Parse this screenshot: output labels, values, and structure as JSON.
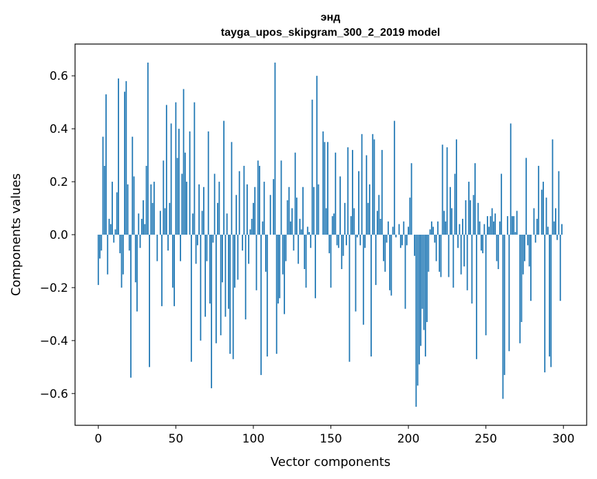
{
  "chart_data": {
    "type": "bar",
    "title": "энд",
    "subtitle": "tayga_upos_skipgram_300_2_2019 model",
    "xlabel": "Vector components",
    "ylabel": "Components values",
    "xlim": [
      -15,
      315
    ],
    "ylim": [
      -0.72,
      0.72
    ],
    "xticks": [
      0,
      50,
      100,
      150,
      200,
      250,
      300
    ],
    "xtick_labels": [
      "0",
      "50",
      "100",
      "150",
      "200",
      "250",
      "300"
    ],
    "yticks": [
      -0.6,
      -0.4,
      -0.2,
      0.0,
      0.2,
      0.4,
      0.6
    ],
    "ytick_labels": [
      "−0.6",
      "−0.4",
      "−0.2",
      "0.0",
      "0.2",
      "0.4",
      "0.6"
    ],
    "grid": false,
    "bar_color": "#1f77b4",
    "x": [
      0,
      1,
      2,
      3,
      4,
      5,
      6,
      7,
      8,
      9,
      10,
      11,
      12,
      13,
      14,
      15,
      16,
      17,
      18,
      19,
      20,
      21,
      22,
      23,
      24,
      25,
      26,
      27,
      28,
      29,
      30,
      31,
      32,
      33,
      34,
      35,
      36,
      37,
      38,
      39,
      40,
      41,
      42,
      43,
      44,
      45,
      46,
      47,
      48,
      49,
      50,
      51,
      52,
      53,
      54,
      55,
      56,
      57,
      58,
      59,
      60,
      61,
      62,
      63,
      64,
      65,
      66,
      67,
      68,
      69,
      70,
      71,
      72,
      73,
      74,
      75,
      76,
      77,
      78,
      79,
      80,
      81,
      82,
      83,
      84,
      85,
      86,
      87,
      88,
      89,
      90,
      91,
      92,
      93,
      94,
      95,
      96,
      97,
      98,
      99,
      100,
      101,
      102,
      103,
      104,
      105,
      106,
      107,
      108,
      109,
      110,
      111,
      112,
      113,
      114,
      115,
      116,
      117,
      118,
      119,
      120,
      121,
      122,
      123,
      124,
      125,
      126,
      127,
      128,
      129,
      130,
      131,
      132,
      133,
      134,
      135,
      136,
      137,
      138,
      139,
      140,
      141,
      142,
      143,
      144,
      145,
      146,
      147,
      148,
      149,
      150,
      151,
      152,
      153,
      154,
      155,
      156,
      157,
      158,
      159,
      160,
      161,
      162,
      163,
      164,
      165,
      166,
      167,
      168,
      169,
      170,
      171,
      172,
      173,
      174,
      175,
      176,
      177,
      178,
      179,
      180,
      181,
      182,
      183,
      184,
      185,
      186,
      187,
      188,
      189,
      190,
      191,
      192,
      193,
      194,
      195,
      196,
      197,
      198,
      199,
      200,
      201,
      202,
      203,
      204,
      205,
      206,
      207,
      208,
      209,
      210,
      211,
      212,
      213,
      214,
      215,
      216,
      217,
      218,
      219,
      220,
      221,
      222,
      223,
      224,
      225,
      226,
      227,
      228,
      229,
      230,
      231,
      232,
      233,
      234,
      235,
      236,
      237,
      238,
      239,
      240,
      241,
      242,
      243,
      244,
      245,
      246,
      247,
      248,
      249,
      250,
      251,
      252,
      253,
      254,
      255,
      256,
      257,
      258,
      259,
      260,
      261,
      262,
      263,
      264,
      265,
      266,
      267,
      268,
      269,
      270,
      271,
      272,
      273,
      274,
      275,
      276,
      277,
      278,
      279,
      280,
      281,
      282,
      283,
      284,
      285,
      286,
      287,
      288,
      289,
      290,
      291,
      292,
      293,
      294,
      295,
      296,
      297,
      298,
      299
    ],
    "values": [
      -0.19,
      -0.09,
      -0.06,
      0.37,
      0.26,
      0.53,
      -0.15,
      0.06,
      0.04,
      0.2,
      -0.03,
      0.02,
      0.16,
      0.59,
      -0.07,
      -0.2,
      -0.15,
      0.54,
      0.58,
      0.19,
      -0.06,
      -0.54,
      0.37,
      0.22,
      -0.18,
      -0.29,
      0.08,
      -0.05,
      0.06,
      0.13,
      0.04,
      0.26,
      0.65,
      -0.5,
      0.19,
      0.12,
      0.2,
      0.0,
      -0.1,
      0.0,
      0.09,
      -0.27,
      0.28,
      0.1,
      0.49,
      -0.06,
      0.12,
      0.42,
      -0.2,
      -0.27,
      0.5,
      0.29,
      0.4,
      -0.1,
      0.23,
      0.55,
      0.31,
      0.2,
      0.0,
      0.39,
      -0.48,
      0.08,
      0.5,
      -0.11,
      -0.04,
      0.19,
      -0.4,
      0.09,
      0.18,
      -0.31,
      -0.1,
      0.39,
      -0.26,
      -0.58,
      -0.03,
      0.23,
      -0.41,
      0.12,
      0.2,
      -0.38,
      -0.18,
      0.43,
      -0.31,
      0.08,
      -0.28,
      -0.45,
      0.35,
      -0.47,
      -0.2,
      0.15,
      -0.17,
      0.24,
      0.0,
      -0.06,
      0.26,
      -0.32,
      0.19,
      -0.11,
      0.02,
      0.06,
      0.12,
      0.18,
      -0.21,
      0.28,
      0.26,
      -0.53,
      0.05,
      0.2,
      -0.14,
      -0.46,
      0.0,
      0.15,
      0.0,
      0.21,
      0.65,
      -0.45,
      -0.26,
      -0.24,
      0.28,
      -0.15,
      -0.3,
      -0.1,
      0.13,
      0.18,
      0.05,
      0.1,
      -0.06,
      0.31,
      0.14,
      -0.11,
      0.06,
      0.02,
      0.18,
      -0.13,
      -0.2,
      0.03,
      0.01,
      -0.05,
      0.51,
      0.18,
      -0.24,
      0.6,
      0.19,
      0.0,
      0.0,
      0.39,
      0.35,
      0.1,
      0.35,
      -0.07,
      -0.2,
      0.07,
      0.08,
      0.31,
      -0.04,
      -0.05,
      0.22,
      -0.13,
      -0.08,
      0.12,
      -0.04,
      0.33,
      -0.48,
      0.07,
      0.32,
      0.1,
      -0.29,
      -0.01,
      0.24,
      -0.04,
      0.38,
      -0.34,
      -0.05,
      0.3,
      0.12,
      0.19,
      -0.46,
      0.38,
      0.36,
      -0.19,
      0.09,
      0.15,
      0.06,
      0.32,
      -0.1,
      -0.14,
      -0.03,
      0.05,
      -0.21,
      -0.23,
      0.03,
      0.43,
      -0.01,
      0.0,
      0.04,
      -0.05,
      -0.04,
      0.05,
      -0.28,
      -0.04,
      0.03,
      0.14,
      0.27,
      0.0,
      -0.08,
      -0.65,
      -0.57,
      -0.49,
      -0.42,
      -0.28,
      -0.36,
      -0.46,
      -0.33,
      -0.14,
      0.02,
      0.05,
      0.03,
      -0.03,
      -0.1,
      0.05,
      -0.14,
      -0.16,
      0.34,
      0.09,
      0.05,
      0.33,
      -0.16,
      0.18,
      0.1,
      -0.2,
      0.23,
      0.36,
      -0.05,
      0.04,
      -0.15,
      0.06,
      -0.12,
      0.13,
      -0.21,
      0.2,
      0.13,
      -0.26,
      0.15,
      0.27,
      -0.47,
      0.12,
      0.05,
      -0.06,
      -0.07,
      0.04,
      -0.38,
      0.07,
      0.03,
      0.07,
      0.1,
      0.05,
      0.08,
      -0.1,
      -0.13,
      0.05,
      0.23,
      -0.62,
      -0.53,
      0.0,
      0.07,
      -0.44,
      0.42,
      0.07,
      0.07,
      0.01,
      0.09,
      0.0,
      -0.41,
      -0.33,
      -0.15,
      -0.1,
      0.29,
      -0.04,
      -0.12,
      -0.25,
      0.0,
      0.1,
      -0.03,
      0.06,
      0.26,
      0.0,
      0.17,
      0.2,
      -0.52,
      0.14,
      0.03,
      -0.46,
      -0.5,
      0.36,
      0.05,
      0.1,
      -0.02,
      0.24,
      -0.25,
      0.04
    ]
  }
}
